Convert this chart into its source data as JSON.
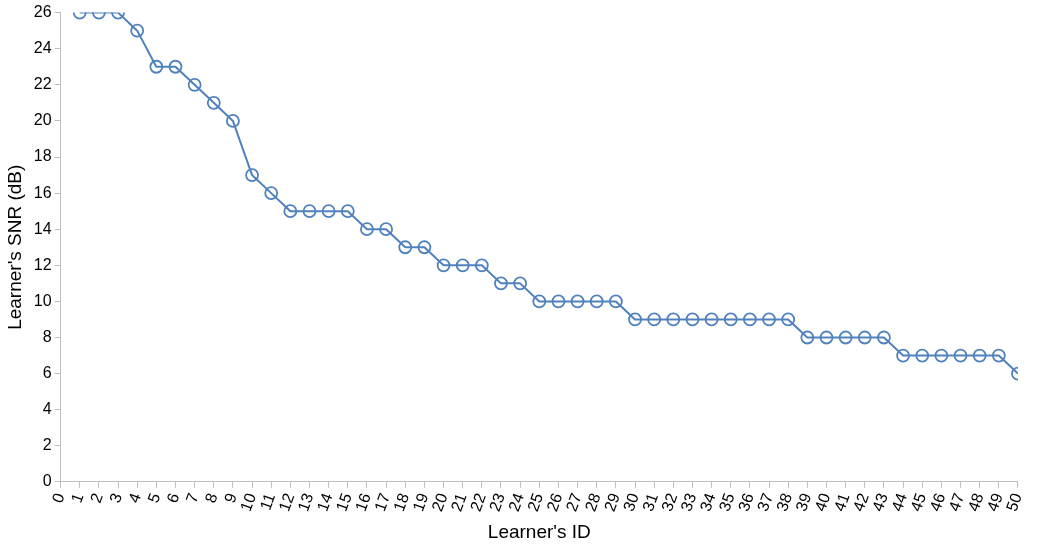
{
  "chart_data": {
    "type": "line",
    "xlabel": "Learner's ID",
    "ylabel": "Learner's SNR (dB)",
    "x": [
      1,
      2,
      3,
      4,
      5,
      6,
      7,
      8,
      9,
      10,
      11,
      12,
      13,
      14,
      15,
      16,
      17,
      18,
      19,
      20,
      21,
      22,
      23,
      24,
      25,
      26,
      27,
      28,
      29,
      30,
      31,
      32,
      33,
      34,
      35,
      36,
      37,
      38,
      39,
      40,
      41,
      42,
      43,
      44,
      45,
      46,
      47,
      48,
      49,
      50
    ],
    "series": [
      {
        "color": "#4f81bd",
        "values": [
          26,
          26,
          26,
          25,
          23,
          23,
          22,
          21,
          20,
          17,
          16,
          15,
          15,
          15,
          15,
          14,
          14,
          13,
          13,
          12,
          12,
          12,
          11,
          11,
          10,
          10,
          10,
          10,
          10,
          9,
          9,
          9,
          9,
          9,
          9,
          9,
          9,
          9,
          8,
          8,
          8,
          8,
          8,
          7,
          7,
          7,
          7,
          7,
          7,
          6
        ]
      }
    ],
    "xlim": [
      0,
      50
    ],
    "xticks": [
      0,
      1,
      2,
      3,
      4,
      5,
      6,
      7,
      8,
      9,
      10,
      11,
      12,
      13,
      14,
      15,
      16,
      17,
      18,
      19,
      20,
      21,
      22,
      23,
      24,
      25,
      26,
      27,
      28,
      29,
      30,
      31,
      32,
      33,
      34,
      35,
      36,
      37,
      38,
      39,
      40,
      41,
      42,
      43,
      44,
      45,
      46,
      47,
      48,
      49,
      50
    ],
    "ylim": [
      0,
      26
    ],
    "yticks": [
      0,
      2,
      4,
      6,
      8,
      10,
      12,
      14,
      16,
      18,
      20,
      22,
      24,
      26
    ],
    "grid": false,
    "legend": false,
    "marker": "circle",
    "line_style": "solid"
  }
}
